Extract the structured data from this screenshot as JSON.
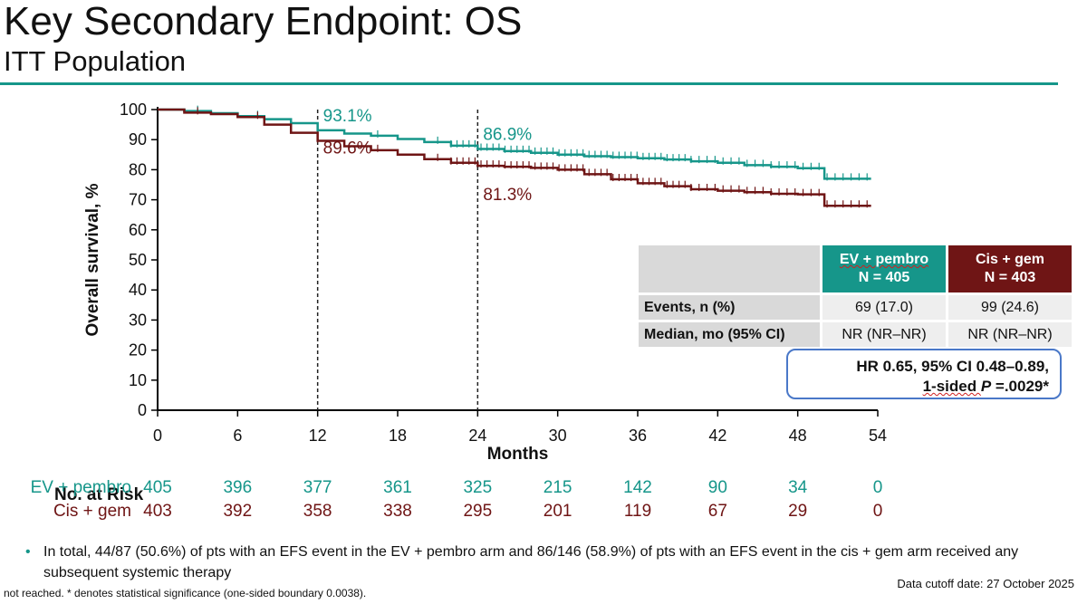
{
  "slide": {
    "title": "Key Secondary Endpoint: OS",
    "subtitle": "ITT Population"
  },
  "colors": {
    "ev": "#16968a",
    "cis": "#6f1515",
    "rule": "#16968a"
  },
  "chart_data": {
    "type": "line",
    "subtype": "kaplan-meier",
    "title": "Key Secondary Endpoint: OS",
    "xlabel": "Months",
    "ylabel": "Overall survival, %",
    "xlim": [
      0,
      54
    ],
    "ylim": [
      0,
      100
    ],
    "xticks": [
      0,
      6,
      12,
      18,
      24,
      30,
      36,
      42,
      48,
      54
    ],
    "yticks": [
      0,
      10,
      20,
      30,
      40,
      50,
      60,
      70,
      80,
      90,
      100
    ],
    "reference_lines_x": [
      12,
      24
    ],
    "series": [
      {
        "name": "EV + pembro",
        "x": [
          0,
          2,
          4,
          6,
          8,
          10,
          12,
          14,
          16,
          18,
          20,
          22,
          24,
          26,
          28,
          30,
          32,
          34,
          36,
          38,
          40,
          42,
          44,
          46,
          48,
          50,
          52,
          53.5
        ],
        "y": [
          100,
          99.5,
          98.8,
          97.8,
          96.8,
          95.5,
          93.1,
          92.0,
          91.3,
          90.2,
          89.2,
          88.0,
          86.9,
          86.2,
          85.6,
          85.0,
          84.5,
          84.2,
          83.8,
          83.4,
          82.8,
          82.3,
          81.5,
          81.0,
          80.5,
          77.0,
          77.0,
          77.0
        ]
      },
      {
        "name": "Cis + gem",
        "x": [
          0,
          2,
          4,
          6,
          8,
          10,
          12,
          14,
          16,
          18,
          20,
          22,
          24,
          26,
          28,
          30,
          32,
          34,
          36,
          38,
          40,
          42,
          44,
          46,
          48,
          50,
          52,
          53.5
        ],
        "y": [
          100,
          99.0,
          98.5,
          97.5,
          95.0,
          92.3,
          89.6,
          87.8,
          86.5,
          85.0,
          83.5,
          82.3,
          81.3,
          81.0,
          80.6,
          80.0,
          78.5,
          76.8,
          75.5,
          74.5,
          73.5,
          73.0,
          72.5,
          72.0,
          71.8,
          68.0,
          68.0,
          68.0
        ]
      }
    ],
    "annotations": [
      {
        "text": "93.1%",
        "series": "EV + pembro",
        "x": 12,
        "y": 93.1
      },
      {
        "text": "89.6%",
        "series": "Cis + gem",
        "x": 12,
        "y": 89.6
      },
      {
        "text": "86.9%",
        "series": "EV + pembro",
        "x": 24,
        "y": 86.9
      },
      {
        "text": "81.3%",
        "series": "Cis + gem",
        "x": 24,
        "y": 81.3
      }
    ]
  },
  "summary_table": {
    "ev_header_line1": "EV + pembro",
    "ev_header_line2": "N = 405",
    "cis_header_line1": "Cis + gem",
    "cis_header_line2": "N = 403",
    "rows": [
      {
        "label": "Events, n (%)",
        "ev": "69 (17.0)",
        "cis": "99 (24.6)"
      },
      {
        "label": "Median, mo (95% CI)",
        "ev": "NR (NR–NR)",
        "cis": "NR (NR–NR)"
      }
    ]
  },
  "hazard_ratio": {
    "line1": "HR 0.65, 95% CI 0.48–0.89,",
    "line2_prefix": "1-sided ",
    "line2_p": "P",
    "line2_suffix": " =.0029*"
  },
  "at_risk": {
    "title": "No. at Risk",
    "months": [
      0,
      6,
      12,
      18,
      24,
      30,
      36,
      42,
      48,
      54
    ],
    "rows": [
      {
        "label": "EV + pembro",
        "values": [
          "405",
          "396",
          "377",
          "361",
          "325",
          "215",
          "142",
          "90",
          "34",
          "0"
        ]
      },
      {
        "label": "Cis + gem",
        "values": [
          "403",
          "392",
          "358",
          "338",
          "295",
          "201",
          "119",
          "67",
          "29",
          "0"
        ]
      }
    ]
  },
  "footnotes": {
    "bullet": "In total, 44/87 (50.6%) of pts with an EFS event in the EV + pembro arm and 86/146 (58.9%) of pts with an EFS event in the cis + gem arm received any subsequent systemic therapy",
    "abbrev": "not reached. * denotes statistical significance (one-sided boundary 0.0038).",
    "cutoff": "Data cutoff date: 27 October 2025"
  }
}
